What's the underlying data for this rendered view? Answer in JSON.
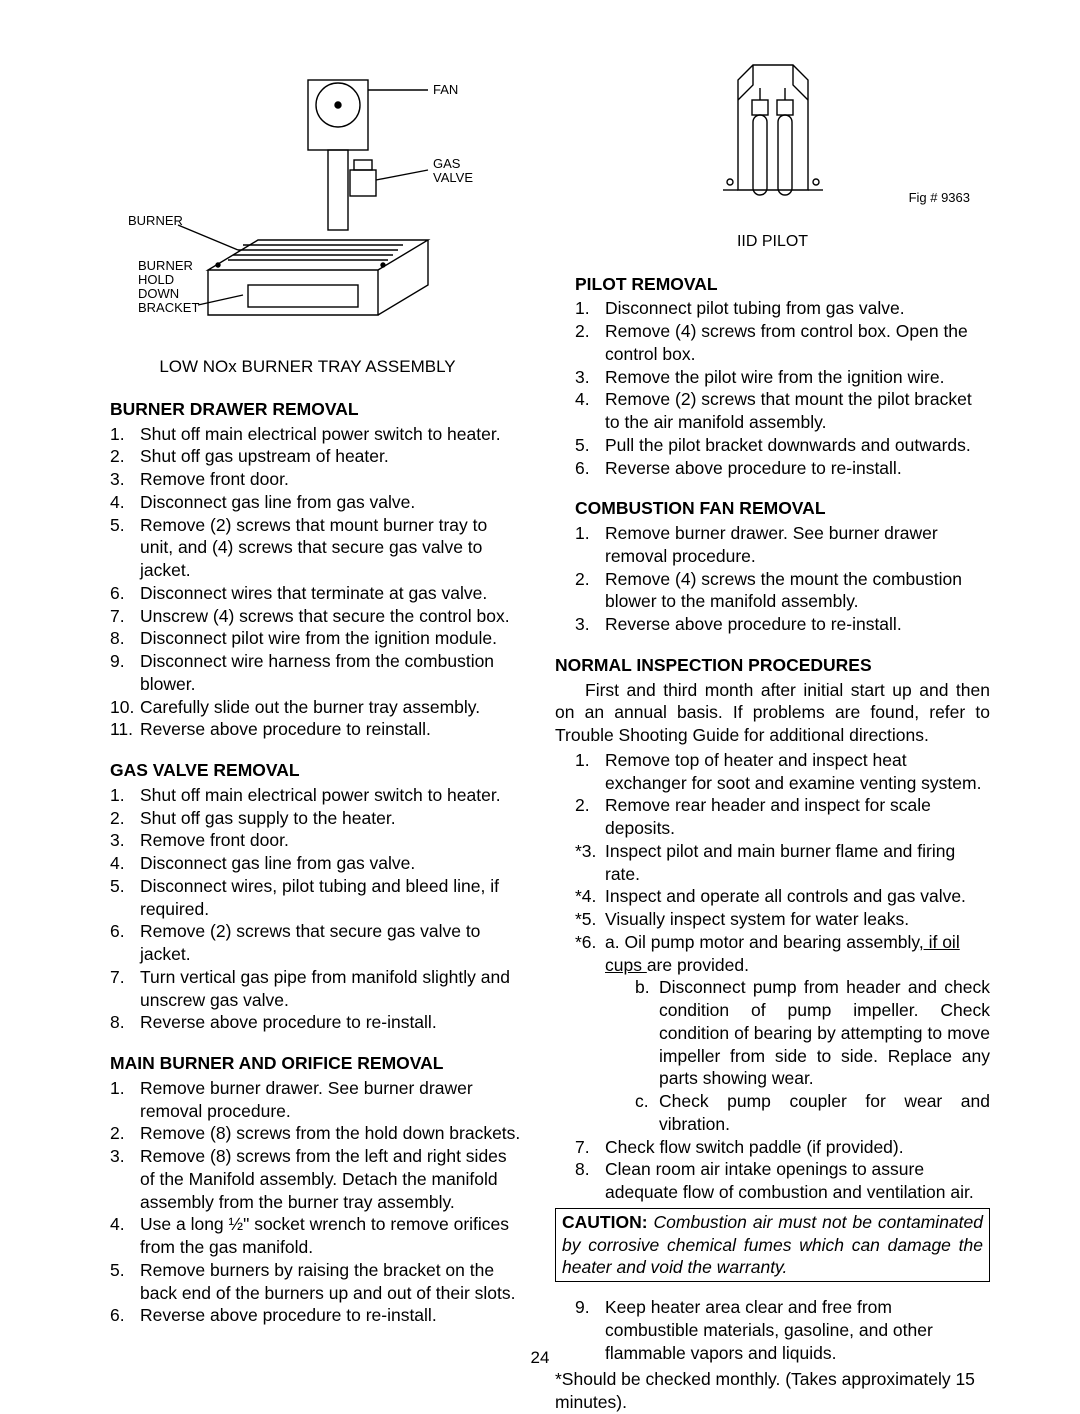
{
  "page_number": "24",
  "left_figure": {
    "labels": {
      "fan": "FAN",
      "gas_valve_l1": "GAS",
      "gas_valve_l2": "VALVE",
      "burner": "BURNER",
      "bracket_l1": "BURNER",
      "bracket_l2": "HOLD",
      "bracket_l3": "DOWN",
      "bracket_l4": "BRACKET"
    },
    "caption": "LOW NOx BURNER TRAY ASSEMBLY"
  },
  "right_figure": {
    "caption": "IID PILOT",
    "fig_num": "Fig # 9363"
  },
  "sections": {
    "burner_drawer": {
      "title": "BURNER DRAWER REMOVAL",
      "steps": [
        {
          "n": "1.",
          "t": "Shut off main electrical power switch to heater."
        },
        {
          "n": "2.",
          "t": "Shut off gas upstream of heater."
        },
        {
          "n": "3.",
          "t": "Remove front door."
        },
        {
          "n": "4.",
          "t": "Disconnect gas line from gas valve."
        },
        {
          "n": "5.",
          "t": "Remove (2) screws that mount burner tray to unit, and (4) screws that secure gas valve to jacket."
        },
        {
          "n": "6.",
          "t": "Disconnect wires that terminate at gas valve."
        },
        {
          "n": "7.",
          "t": "Unscrew (4) screws that secure the control box."
        },
        {
          "n": "8.",
          "t": "Disconnect pilot wire from the ignition module."
        },
        {
          "n": "9.",
          "t": "Disconnect wire harness from the combustion blower.",
          "justify": true
        },
        {
          "n": "10.",
          "t": "Carefully slide out the burner tray assembly."
        },
        {
          "n": "11.",
          "t": "Reverse above procedure to reinstall."
        }
      ]
    },
    "gas_valve": {
      "title": "GAS VALVE REMOVAL",
      "steps": [
        {
          "n": "1.",
          "t": "Shut off main electrical power switch to heater."
        },
        {
          "n": "2.",
          "t": "Shut off gas supply to the heater."
        },
        {
          "n": "3.",
          "t": "Remove front door."
        },
        {
          "n": "4.",
          "t": "Disconnect gas line from gas valve."
        },
        {
          "n": "5.",
          "t": "Disconnect wires, pilot tubing and bleed line, if required."
        },
        {
          "n": "6.",
          "t": "Remove (2) screws that secure gas valve to jacket."
        },
        {
          "n": "7.",
          "t": "Turn vertical gas pipe from manifold slightly and unscrew gas valve."
        },
        {
          "n": "8.",
          "t": "Reverse above procedure to re-install."
        }
      ]
    },
    "main_burner": {
      "title": "MAIN BURNER AND ORIFICE REMOVAL",
      "steps": [
        {
          "n": "1.",
          "t": "Remove burner drawer.  See burner drawer removal procedure.",
          "justify": true
        },
        {
          "n": "2.",
          "t": "Remove (8) screws from the hold down brackets."
        },
        {
          "n": "3.",
          "t": "Remove (8) screws from the left and right sides of the Manifold assembly.  Detach the manifold assembly from the burner tray assembly.",
          "justify": true
        },
        {
          "n": "4.",
          "t": "Use a long ½\" socket wrench to remove orifices from the gas manifold.",
          "justify": true
        },
        {
          "n": "5.",
          "t": "Remove burners by raising the bracket on the back end of the burners up and out of their slots.",
          "justify": true
        },
        {
          "n": "6.",
          "t": "Reverse above procedure to re-install."
        }
      ]
    },
    "pilot": {
      "title": "PILOT REMOVAL",
      "steps": [
        {
          "n": "1.",
          "t": "Disconnect pilot tubing from gas valve."
        },
        {
          "n": "2.",
          "t": "Remove (4) screws from control box.  Open the control box."
        },
        {
          "n": "3.",
          "t": "Remove the pilot wire from the ignition wire."
        },
        {
          "n": "4.",
          "t": "Remove (2) screws that mount the pilot bracket to the air manifold assembly."
        },
        {
          "n": "5.",
          "t": "Pull the pilot bracket downwards and outwards."
        },
        {
          "n": "6.",
          "t": "Reverse above procedure to re-install."
        }
      ]
    },
    "combustion_fan": {
      "title": "COMBUSTION FAN REMOVAL",
      "steps": [
        {
          "n": "1.",
          "t": "Remove burner drawer.  See burner drawer removal procedure."
        },
        {
          "n": "2.",
          "t": "Remove (4) screws the mount the combustion blower to the manifold assembly."
        },
        {
          "n": "3.",
          "t": "Reverse above procedure to re-install."
        }
      ]
    },
    "inspection": {
      "title": "NORMAL INSPECTION PROCEDURES",
      "intro": "First and third month after initial start up and then on an annual basis. If problems are found, refer to Trouble Shooting Guide for additional directions.",
      "steps_pre": [
        {
          "n": "1.",
          "t": "Remove top of heater and inspect heat exchanger for soot and examine venting system."
        },
        {
          "n": "2.",
          "t": "Remove rear header and inspect for scale deposits.",
          "justify": true
        },
        {
          "n": "*3.",
          "t": "Inspect pilot and main burner flame and firing rate."
        },
        {
          "n": "*4.",
          "t": "Inspect and operate all controls and gas valve."
        },
        {
          "n": "*5.",
          "t": "Visually inspect system for water leaks."
        }
      ],
      "step6_lead_n": "*6.",
      "step6_a_pre": "a. Oil pump motor and bearing assembly",
      "step6_a_ul": ", if oil cups ",
      "step6_a_post": "are provided.",
      "step6_subs": [
        {
          "l": "b.",
          "t": "Disconnect pump from header and check condition of pump impeller.  Check condition of bearing by attempting to move impeller from side to side.  Replace any parts showing wear."
        },
        {
          "l": "c.",
          "t": "Check pump coupler  for wear and vibration."
        }
      ],
      "steps_mid": [
        {
          "n": "7.",
          "t": "Check flow switch paddle (if provided)."
        },
        {
          "n": "8.",
          "t": "Clean room air intake openings to assure adequate flow of combustion and ventilation air."
        }
      ],
      "caution_lead": "CAUTION:",
      "caution_body": " Combustion air must not be contaminated by corrosive chemical fumes which can damage the heater and void the warranty.",
      "steps_post": [
        {
          "n": "9.",
          "t": "Keep heater area clear and free from combustible materials, gasoline, and other flammable vapors and liquids.",
          "justify": true
        }
      ],
      "footnote": "*Should be checked monthly.  (Takes approximately 15 minutes)."
    }
  }
}
